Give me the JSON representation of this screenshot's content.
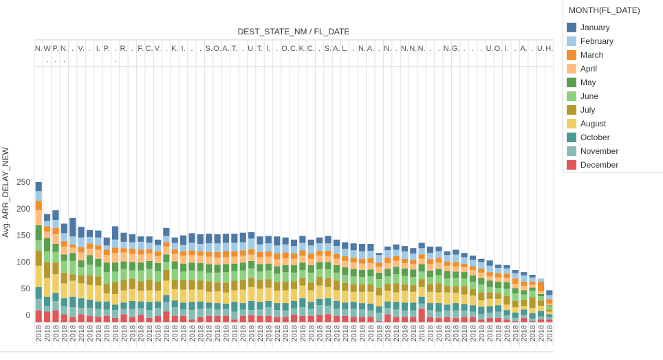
{
  "chart_data": {
    "type": "bar",
    "stacked": true,
    "title": "DEST_STATE_NM / FL_DATE",
    "ylabel": "Avg. ARR_DELAY_NEW",
    "xlabel": "",
    "ylim": [
      0,
      275
    ],
    "yticks": [
      0,
      50,
      100,
      150,
      200,
      250
    ],
    "grid": "vertical-separators",
    "legend_position": "right",
    "header_labels": [
      "N.",
      "W",
      "P.",
      "N.",
      ".",
      "V.",
      ".",
      "I.",
      "P.",
      ".",
      "R.",
      ".",
      "F.",
      "C.",
      "V.",
      ".",
      "K.",
      "I.",
      ".",
      ".",
      "S.",
      "O.",
      "A.",
      "T.",
      ".",
      "U.",
      "T.",
      "I.",
      ".",
      "O.",
      "C.",
      "K.",
      "C.",
      ".",
      "S.",
      "A.",
      "L.",
      ".",
      "N.",
      "A.",
      ".",
      "N.",
      ".",
      "N.",
      "N.",
      "N.",
      ".",
      ".",
      "N.",
      "G.",
      ".",
      ".",
      ".",
      "U.",
      "O.",
      "I.",
      ".",
      "A.",
      ".",
      "U.",
      "H."
    ],
    "header_row2": [
      "",
      ".",
      ".",
      ".",
      "",
      "",
      "",
      "",
      "",
      ".",
      "",
      "",
      "",
      "",
      "",
      "",
      "",
      "",
      "",
      "",
      "",
      "",
      "",
      "",
      "",
      "",
      "",
      "",
      "",
      "",
      "",
      "",
      "",
      "",
      "",
      "",
      "",
      "",
      "",
      "",
      "",
      "",
      "",
      "",
      "",
      "",
      "",
      "",
      "",
      "",
      "",
      "",
      "",
      "",
      "",
      "",
      "",
      "",
      "",
      "",
      ""
    ],
    "x_tick_label": "2018",
    "legend_title": "MONTH(FL_DATE)",
    "series": [
      {
        "name": "December",
        "color": "#e15759",
        "values": [
          22,
          20,
          22,
          15,
          10,
          15,
          12,
          10,
          12,
          8,
          15,
          10,
          14,
          8,
          12,
          20,
          12,
          12,
          5,
          10,
          12,
          12,
          12,
          5,
          12,
          13,
          12,
          12,
          10,
          10,
          14,
          12,
          12,
          14,
          15,
          12,
          12,
          10,
          10,
          10,
          2,
          15,
          10,
          10,
          10,
          25,
          10,
          8,
          10,
          8,
          10,
          10,
          5,
          8,
          8,
          5,
          2,
          8,
          2,
          5,
          5
        ]
      },
      {
        "name": "November",
        "color": "#86bcb6",
        "values": [
          22,
          10,
          18,
          15,
          18,
          12,
          15,
          15,
          12,
          15,
          10,
          15,
          12,
          15,
          15,
          18,
          16,
          12,
          18,
          15,
          14,
          12,
          13,
          15,
          12,
          10,
          12,
          16,
          13,
          12,
          12,
          16,
          13,
          18,
          16,
          13,
          12,
          15,
          14,
          12,
          16,
          12,
          14,
          12,
          12,
          10,
          13,
          12,
          12,
          14,
          12,
          10,
          10,
          10,
          12,
          8,
          6,
          6,
          5,
          6,
          5
        ]
      },
      {
        "name": "October",
        "color": "#499894",
        "values": [
          22,
          18,
          15,
          15,
          20,
          18,
          15,
          14,
          15,
          10,
          12,
          15,
          13,
          15,
          12,
          13,
          13,
          13,
          15,
          14,
          11,
          12,
          10,
          18,
          12,
          17,
          14,
          12,
          13,
          14,
          14,
          17,
          13,
          12,
          14,
          15,
          13,
          13,
          12,
          13,
          12,
          12,
          14,
          15,
          15,
          13,
          13,
          16,
          11,
          14,
          12,
          12,
          14,
          12,
          12,
          10,
          10,
          10,
          10,
          10,
          5
        ]
      },
      {
        "name": "August",
        "color": "#f1ce63",
        "values": [
          40,
          35,
          35,
          28,
          30,
          28,
          28,
          30,
          15,
          20,
          23,
          22,
          20,
          22,
          20,
          27,
          21,
          24,
          23,
          22,
          20,
          22,
          21,
          22,
          25,
          26,
          25,
          25,
          23,
          24,
          22,
          24,
          22,
          25,
          21,
          20,
          22,
          19,
          21,
          22,
          20,
          20,
          18,
          22,
          20,
          18,
          21,
          20,
          23,
          19,
          18,
          18,
          12,
          14,
          12,
          10,
          10,
          6,
          10,
          10,
          5
        ]
      },
      {
        "name": "July",
        "color": "#b6992d",
        "values": [
          28,
          30,
          22,
          20,
          12,
          15,
          18,
          17,
          18,
          22,
          20,
          20,
          18,
          20,
          17,
          20,
          18,
          18,
          18,
          17,
          20,
          17,
          18,
          18,
          18,
          17,
          16,
          16,
          16,
          16,
          15,
          14,
          15,
          16,
          17,
          18,
          15,
          14,
          14,
          14,
          15,
          13,
          17,
          12,
          12,
          15,
          15,
          17,
          12,
          13,
          16,
          12,
          15,
          12,
          10,
          16,
          12,
          12,
          20,
          10,
          4
        ]
      },
      {
        "name": "June",
        "color": "#8cd17d",
        "values": [
          20,
          20,
          20,
          22,
          25,
          15,
          20,
          18,
          22,
          20,
          20,
          15,
          20,
          20,
          20,
          15,
          20,
          16,
          18,
          18,
          16,
          18,
          20,
          18,
          18,
          18,
          16,
          16,
          16,
          18,
          16,
          15,
          18,
          15,
          16,
          15,
          15,
          15,
          14,
          15,
          16,
          14,
          17,
          16,
          16,
          14,
          13,
          15,
          14,
          15,
          14,
          14,
          15,
          10,
          10,
          14,
          14,
          10,
          12,
          8,
          6
        ]
      },
      {
        "name": "May",
        "color": "#59a14f",
        "values": [
          28,
          25,
          15,
          12,
          15,
          13,
          18,
          15,
          18,
          17,
          14,
          16,
          15,
          15,
          15,
          14,
          14,
          15,
          15,
          15,
          16,
          15,
          15,
          14,
          15,
          14,
          14,
          13,
          14,
          13,
          14,
          14,
          14,
          13,
          14,
          14,
          14,
          14,
          13,
          13,
          12,
          14,
          14,
          14,
          14,
          14,
          12,
          12,
          14,
          12,
          12,
          12,
          12,
          12,
          12,
          12,
          10,
          8,
          6,
          4,
          2
        ]
      },
      {
        "name": "April",
        "color": "#ffbe7d",
        "values": [
          28,
          12,
          18,
          15,
          10,
          15,
          12,
          17,
          14,
          18,
          17,
          15,
          15,
          14,
          13,
          15,
          14,
          15,
          14,
          14,
          14,
          13,
          13,
          13,
          13,
          12,
          13,
          13,
          13,
          13,
          12,
          13,
          12,
          12,
          11,
          12,
          12,
          12,
          12,
          12,
          11,
          11,
          11,
          10,
          10,
          10,
          12,
          12,
          10,
          10,
          9,
          10,
          10,
          8,
          8,
          8,
          8,
          8,
          5,
          5,
          3
        ]
      },
      {
        "name": "March",
        "color": "#f28e2b",
        "values": [
          18,
          10,
          12,
          10,
          6,
          10,
          10,
          8,
          10,
          10,
          8,
          10,
          9,
          8,
          9,
          8,
          9,
          8,
          9,
          8,
          9,
          11,
          12,
          10,
          10,
          10,
          10,
          10,
          11,
          11,
          10,
          10,
          10,
          9,
          10,
          9,
          9,
          9,
          9,
          9,
          8,
          10,
          9,
          8,
          8,
          8,
          9,
          9,
          8,
          8,
          7,
          7,
          8,
          8,
          8,
          8,
          10,
          8,
          6,
          18,
          8
        ]
      },
      {
        "name": "February",
        "color": "#a0cbe8",
        "values": [
          18,
          10,
          15,
          15,
          15,
          18,
          12,
          15,
          8,
          15,
          12,
          12,
          15,
          12,
          12,
          12,
          12,
          12,
          14,
          14,
          16,
          16,
          15,
          16,
          15,
          20,
          14,
          15,
          15,
          15,
          14,
          14,
          15,
          14,
          14,
          15,
          14,
          14,
          14,
          14,
          14,
          14,
          12,
          14,
          12,
          12,
          12,
          12,
          12,
          14,
          12,
          12,
          12,
          12,
          10,
          10,
          10,
          12,
          8,
          6,
          8
        ]
      },
      {
        "name": "January",
        "color": "#4e79a7",
        "values": [
          17,
          13,
          18,
          18,
          35,
          20,
          13,
          13,
          15,
          25,
          17,
          15,
          10,
          12,
          10,
          15,
          10,
          18,
          18,
          18,
          18,
          17,
          17,
          17,
          18,
          12,
          15,
          14,
          17,
          13,
          12,
          13,
          11,
          11,
          14,
          12,
          12,
          13,
          14,
          13,
          4,
          7,
          10,
          10,
          10,
          10,
          12,
          9,
          7,
          9,
          8,
          8,
          6,
          10,
          6,
          6,
          6,
          6,
          5,
          0,
          9
        ]
      }
    ]
  }
}
